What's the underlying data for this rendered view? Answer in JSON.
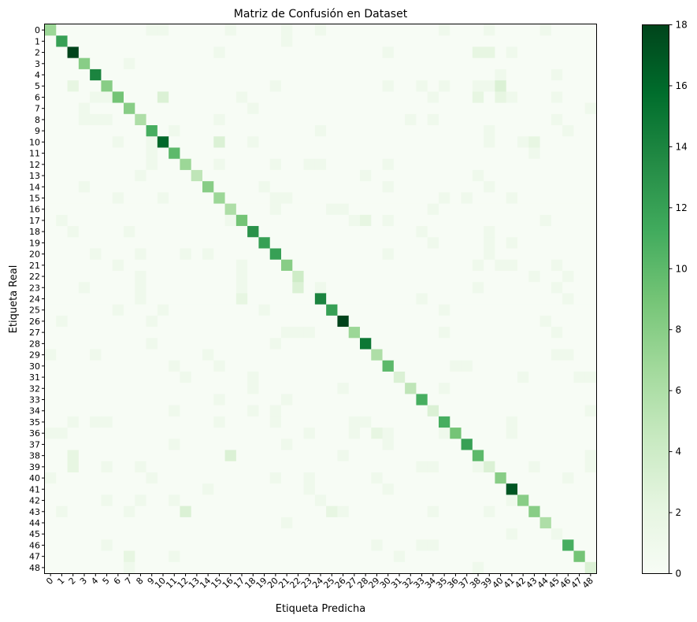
{
  "chart_data": {
    "type": "heatmap",
    "title": "Matriz de Confusión en Dataset",
    "xlabel": "Etiqueta Predicha",
    "ylabel": "Etiqueta Real",
    "labels": [
      "0",
      "1",
      "2",
      "3",
      "4",
      "5",
      "6",
      "7",
      "8",
      "9",
      "10",
      "11",
      "12",
      "13",
      "14",
      "15",
      "16",
      "17",
      "18",
      "19",
      "20",
      "21",
      "22",
      "23",
      "24",
      "25",
      "26",
      "27",
      "28",
      "29",
      "30",
      "31",
      "32",
      "33",
      "34",
      "35",
      "36",
      "37",
      "38",
      "39",
      "40",
      "41",
      "42",
      "43",
      "44",
      "45",
      "46",
      "47",
      "48"
    ],
    "diagonal": [
      7,
      12,
      18,
      8,
      14,
      8,
      9,
      8,
      6,
      11,
      16,
      10,
      7,
      5,
      8,
      7,
      6,
      9,
      13,
      12,
      12,
      8,
      4,
      0,
      14,
      12,
      18,
      7,
      15,
      6,
      10,
      3,
      5,
      11,
      3,
      11,
      9,
      12,
      10,
      3,
      8,
      17,
      8,
      8,
      6,
      1,
      11,
      9,
      3
    ],
    "off_diagonal": [
      [
        0,
        16,
        1
      ],
      [
        0,
        9,
        1
      ],
      [
        0,
        10,
        1
      ],
      [
        0,
        21,
        1
      ],
      [
        0,
        24,
        1
      ],
      [
        0,
        35,
        1
      ],
      [
        0,
        39,
        1
      ],
      [
        0,
        44,
        1
      ],
      [
        1,
        21,
        1
      ],
      [
        2,
        15,
        1
      ],
      [
        2,
        30,
        1
      ],
      [
        2,
        38,
        2
      ],
      [
        2,
        39,
        2
      ],
      [
        2,
        41,
        1
      ],
      [
        3,
        7,
        1
      ],
      [
        4,
        40,
        1
      ],
      [
        4,
        45,
        1
      ],
      [
        5,
        2,
        2
      ],
      [
        5,
        20,
        1
      ],
      [
        5,
        30,
        1
      ],
      [
        5,
        33,
        1
      ],
      [
        5,
        35,
        1
      ],
      [
        5,
        38,
        1
      ],
      [
        5,
        39,
        1
      ],
      [
        5,
        40,
        3
      ],
      [
        6,
        4,
        1
      ],
      [
        6,
        5,
        1
      ],
      [
        6,
        10,
        3
      ],
      [
        6,
        17,
        1
      ],
      [
        6,
        34,
        1
      ],
      [
        6,
        38,
        2
      ],
      [
        6,
        40,
        2
      ],
      [
        6,
        41,
        1
      ],
      [
        6,
        45,
        1
      ],
      [
        7,
        3,
        1
      ],
      [
        7,
        18,
        1
      ],
      [
        7,
        48,
        1
      ],
      [
        8,
        3,
        1
      ],
      [
        8,
        4,
        1
      ],
      [
        8,
        5,
        1
      ],
      [
        8,
        15,
        1
      ],
      [
        8,
        32,
        1
      ],
      [
        8,
        34,
        1
      ],
      [
        8,
        45,
        1
      ],
      [
        9,
        11,
        1
      ],
      [
        9,
        24,
        1
      ],
      [
        9,
        39,
        1
      ],
      [
        9,
        46,
        1
      ],
      [
        10,
        6,
        1
      ],
      [
        10,
        9,
        1
      ],
      [
        10,
        15,
        3
      ],
      [
        10,
        18,
        1
      ],
      [
        10,
        39,
        1
      ],
      [
        10,
        42,
        1
      ],
      [
        10,
        43,
        2
      ],
      [
        11,
        9,
        1
      ],
      [
        11,
        43,
        1
      ],
      [
        12,
        9,
        1
      ],
      [
        12,
        15,
        1
      ],
      [
        12,
        20,
        1
      ],
      [
        12,
        23,
        1
      ],
      [
        12,
        24,
        1
      ],
      [
        12,
        30,
        1
      ],
      [
        13,
        8,
        1
      ],
      [
        13,
        28,
        1
      ],
      [
        13,
        38,
        1
      ],
      [
        14,
        3,
        1
      ],
      [
        14,
        19,
        1
      ],
      [
        14,
        30,
        1
      ],
      [
        14,
        39,
        1
      ],
      [
        15,
        6,
        1
      ],
      [
        15,
        10,
        1
      ],
      [
        15,
        20,
        1
      ],
      [
        15,
        21,
        1
      ],
      [
        15,
        35,
        1
      ],
      [
        15,
        37,
        1
      ],
      [
        15,
        41,
        1
      ],
      [
        16,
        20,
        1
      ],
      [
        16,
        25,
        1
      ],
      [
        16,
        26,
        1
      ],
      [
        16,
        34,
        1
      ],
      [
        17,
        1,
        1
      ],
      [
        17,
        16,
        1
      ],
      [
        17,
        27,
        1
      ],
      [
        17,
        28,
        2
      ],
      [
        17,
        30,
        1
      ],
      [
        17,
        44,
        1
      ],
      [
        18,
        2,
        1
      ],
      [
        18,
        7,
        1
      ],
      [
        18,
        33,
        1
      ],
      [
        18,
        39,
        1
      ],
      [
        19,
        34,
        1
      ],
      [
        19,
        39,
        1
      ],
      [
        19,
        41,
        1
      ],
      [
        20,
        4,
        1
      ],
      [
        20,
        8,
        1
      ],
      [
        20,
        12,
        1
      ],
      [
        20,
        14,
        1
      ],
      [
        20,
        30,
        1
      ],
      [
        20,
        39,
        1
      ],
      [
        21,
        6,
        1
      ],
      [
        21,
        17,
        1
      ],
      [
        21,
        38,
        1
      ],
      [
        21,
        40,
        1
      ],
      [
        21,
        41,
        1
      ],
      [
        21,
        45,
        1
      ],
      [
        22,
        8,
        1
      ],
      [
        22,
        17,
        1
      ],
      [
        22,
        43,
        1
      ],
      [
        22,
        46,
        1
      ],
      [
        23,
        3,
        1
      ],
      [
        23,
        8,
        1
      ],
      [
        23,
        17,
        1
      ],
      [
        23,
        22,
        3
      ],
      [
        23,
        24,
        1
      ],
      [
        23,
        38,
        1
      ],
      [
        23,
        45,
        1
      ],
      [
        24,
        8,
        1
      ],
      [
        24,
        17,
        2
      ],
      [
        24,
        33,
        1
      ],
      [
        24,
        46,
        1
      ],
      [
        25,
        6,
        1
      ],
      [
        25,
        10,
        1
      ],
      [
        25,
        19,
        1
      ],
      [
        25,
        35,
        1
      ],
      [
        26,
        1,
        1
      ],
      [
        26,
        9,
        1
      ],
      [
        26,
        44,
        1
      ],
      [
        27,
        21,
        1
      ],
      [
        27,
        22,
        1
      ],
      [
        27,
        23,
        1
      ],
      [
        27,
        35,
        1
      ],
      [
        27,
        45,
        1
      ],
      [
        28,
        9,
        1
      ],
      [
        28,
        20,
        1
      ],
      [
        29,
        0,
        1
      ],
      [
        29,
        4,
        1
      ],
      [
        29,
        14,
        1
      ],
      [
        29,
        45,
        1
      ],
      [
        29,
        46,
        1
      ],
      [
        30,
        11,
        1
      ],
      [
        30,
        15,
        1
      ],
      [
        30,
        36,
        1
      ],
      [
        30,
        37,
        1
      ],
      [
        31,
        12,
        1
      ],
      [
        31,
        18,
        1
      ],
      [
        31,
        42,
        1
      ],
      [
        31,
        47,
        1
      ],
      [
        31,
        48,
        1
      ],
      [
        32,
        18,
        1
      ],
      [
        32,
        26,
        1
      ],
      [
        32,
        35,
        1
      ],
      [
        33,
        15,
        1
      ],
      [
        33,
        21,
        1
      ],
      [
        34,
        11,
        1
      ],
      [
        34,
        18,
        1
      ],
      [
        34,
        20,
        1
      ],
      [
        34,
        48,
        1
      ],
      [
        35,
        2,
        1
      ],
      [
        35,
        4,
        1
      ],
      [
        35,
        5,
        1
      ],
      [
        35,
        15,
        1
      ],
      [
        35,
        20,
        1
      ],
      [
        35,
        27,
        1
      ],
      [
        35,
        28,
        1
      ],
      [
        35,
        41,
        1
      ],
      [
        36,
        0,
        1
      ],
      [
        36,
        1,
        1
      ],
      [
        36,
        23,
        1
      ],
      [
        36,
        27,
        1
      ],
      [
        36,
        29,
        2
      ],
      [
        36,
        30,
        1
      ],
      [
        36,
        35,
        1
      ],
      [
        36,
        41,
        1
      ],
      [
        37,
        11,
        1
      ],
      [
        37,
        21,
        1
      ],
      [
        37,
        30,
        1
      ],
      [
        38,
        2,
        2
      ],
      [
        38,
        16,
        3
      ],
      [
        38,
        26,
        1
      ],
      [
        38,
        48,
        1
      ],
      [
        39,
        2,
        2
      ],
      [
        39,
        5,
        1
      ],
      [
        39,
        8,
        1
      ],
      [
        39,
        33,
        1
      ],
      [
        39,
        34,
        1
      ],
      [
        39,
        38,
        1
      ],
      [
        39,
        43,
        1
      ],
      [
        39,
        48,
        1
      ],
      [
        40,
        0,
        1
      ],
      [
        40,
        9,
        1
      ],
      [
        40,
        20,
        1
      ],
      [
        40,
        23,
        1
      ],
      [
        40,
        29,
        1
      ],
      [
        40,
        46,
        1
      ],
      [
        41,
        14,
        1
      ],
      [
        41,
        23,
        1
      ],
      [
        41,
        30,
        1
      ],
      [
        42,
        5,
        1
      ],
      [
        42,
        8,
        1
      ],
      [
        42,
        11,
        1
      ],
      [
        42,
        24,
        1
      ],
      [
        42,
        41,
        1
      ],
      [
        43,
        1,
        1
      ],
      [
        43,
        7,
        1
      ],
      [
        43,
        12,
        3
      ],
      [
        43,
        25,
        2
      ],
      [
        43,
        26,
        1
      ],
      [
        43,
        34,
        1
      ],
      [
        43,
        39,
        1
      ],
      [
        44,
        21,
        1
      ],
      [
        45,
        41,
        1
      ],
      [
        46,
        5,
        1
      ],
      [
        46,
        29,
        1
      ],
      [
        46,
        33,
        1
      ],
      [
        46,
        34,
        1
      ],
      [
        47,
        7,
        2
      ],
      [
        47,
        11,
        1
      ],
      [
        47,
        31,
        1
      ],
      [
        48,
        7,
        1
      ],
      [
        48,
        38,
        1
      ]
    ],
    "colorbar": {
      "min": 0,
      "max": 18,
      "ticks": [
        0,
        2,
        4,
        6,
        8,
        10,
        12,
        14,
        16,
        18
      ]
    },
    "colormap": "Greens",
    "colors": {
      "low": "#f7fcf5",
      "high": "#00441b"
    },
    "grid": false
  }
}
